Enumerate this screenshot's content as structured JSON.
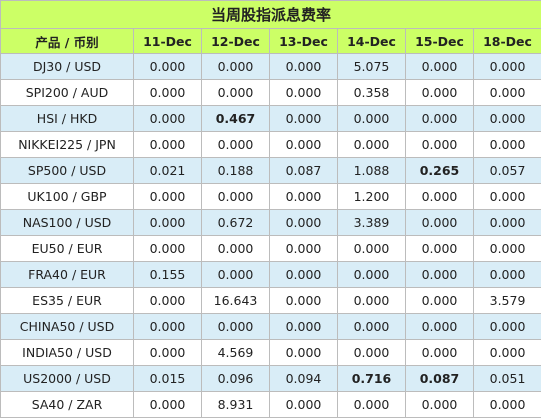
{
  "table": {
    "title": "当周股指派息费率",
    "header": {
      "first": "产品 / 币别",
      "dates": [
        "11-Dec",
        "12-Dec",
        "13-Dec",
        "14-Dec",
        "15-Dec",
        "18-Dec"
      ]
    },
    "rows": [
      {
        "pair": "DJ30 / USD",
        "values": [
          "0.000",
          "0.000",
          "0.000",
          "5.075",
          "0.000",
          "0.000"
        ],
        "bold": []
      },
      {
        "pair": "SPI200 / AUD",
        "values": [
          "0.000",
          "0.000",
          "0.000",
          "0.358",
          "0.000",
          "0.000"
        ],
        "bold": []
      },
      {
        "pair": "HSI / HKD",
        "values": [
          "0.000",
          "0.467",
          "0.000",
          "0.000",
          "0.000",
          "0.000"
        ],
        "bold": [
          1
        ]
      },
      {
        "pair": "NIKKEI225 / JPN",
        "values": [
          "0.000",
          "0.000",
          "0.000",
          "0.000",
          "0.000",
          "0.000"
        ],
        "bold": []
      },
      {
        "pair": "SP500 / USD",
        "values": [
          "0.021",
          "0.188",
          "0.087",
          "1.088",
          "0.265",
          "0.057"
        ],
        "bold": [
          4
        ]
      },
      {
        "pair": "UK100 / GBP",
        "values": [
          "0.000",
          "0.000",
          "0.000",
          "1.200",
          "0.000",
          "0.000"
        ],
        "bold": []
      },
      {
        "pair": "NAS100 / USD",
        "values": [
          "0.000",
          "0.672",
          "0.000",
          "3.389",
          "0.000",
          "0.000"
        ],
        "bold": []
      },
      {
        "pair": "EU50 / EUR",
        "values": [
          "0.000",
          "0.000",
          "0.000",
          "0.000",
          "0.000",
          "0.000"
        ],
        "bold": []
      },
      {
        "pair": "FRA40 / EUR",
        "values": [
          "0.155",
          "0.000",
          "0.000",
          "0.000",
          "0.000",
          "0.000"
        ],
        "bold": []
      },
      {
        "pair": "ES35 / EUR",
        "values": [
          "0.000",
          "16.643",
          "0.000",
          "0.000",
          "0.000",
          "3.579"
        ],
        "bold": []
      },
      {
        "pair": "CHINA50 / USD",
        "values": [
          "0.000",
          "0.000",
          "0.000",
          "0.000",
          "0.000",
          "0.000"
        ],
        "bold": []
      },
      {
        "pair": "INDIA50 / USD",
        "values": [
          "0.000",
          "4.569",
          "0.000",
          "0.000",
          "0.000",
          "0.000"
        ],
        "bold": []
      },
      {
        "pair": "US2000 / USD",
        "values": [
          "0.015",
          "0.096",
          "0.094",
          "0.716",
          "0.087",
          "0.051"
        ],
        "bold": [
          3,
          4
        ]
      },
      {
        "pair": "SA40 / ZAR",
        "values": [
          "0.000",
          "8.931",
          "0.000",
          "0.000",
          "0.000",
          "0.000"
        ],
        "bold": []
      }
    ]
  }
}
